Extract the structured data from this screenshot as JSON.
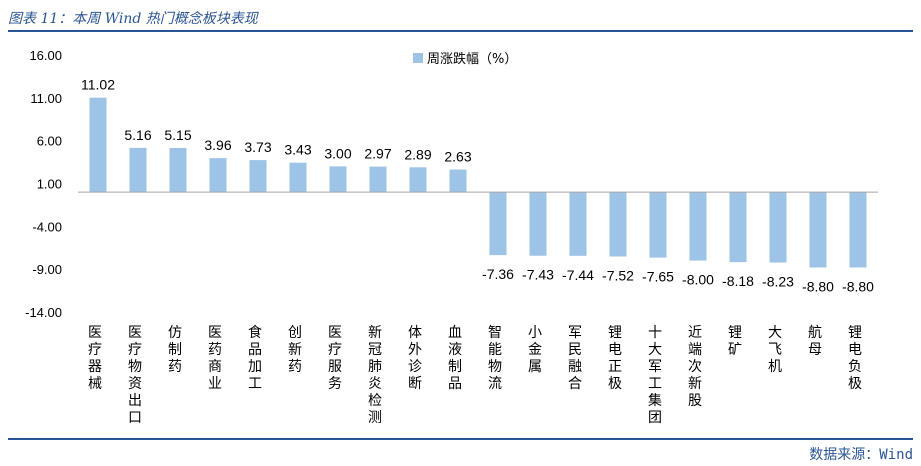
{
  "header": {
    "caption": "图表 11：本周 Wind 热门概念板块表现"
  },
  "footer": {
    "source": "数据来源：Wind"
  },
  "chart_data": {
    "type": "bar",
    "title": "",
    "xlabel": "",
    "ylabel": "",
    "ylim": [
      -14,
      16
    ],
    "yticks": [
      "16.00",
      "11.00",
      "6.00",
      "1.00",
      "-4.00",
      "-9.00",
      "-14.00"
    ],
    "ytick_values": [
      16,
      11,
      6,
      1,
      -4,
      -9,
      -14
    ],
    "legend": "top-center",
    "grid": false,
    "bar_color": "#9dc3e6",
    "categories": [
      "医疗器械",
      "医疗物资出口",
      "仿制药",
      "医药商业",
      "食品加工",
      "创新药",
      "医疗服务",
      "新冠肺炎检测",
      "体外诊断",
      "血液制品",
      "智能物流",
      "小金属",
      "军民融合",
      "锂电正极",
      "十大军工集团",
      "近端次新股",
      "锂矿",
      "大飞机",
      "航母",
      "锂电负极"
    ],
    "series": [
      {
        "name": "周涨跌幅（%）",
        "values": [
          11.02,
          5.16,
          5.15,
          3.96,
          3.73,
          3.43,
          3.0,
          2.97,
          2.89,
          2.63,
          -7.36,
          -7.43,
          -7.44,
          -7.52,
          -7.65,
          -8.0,
          -8.18,
          -8.23,
          -8.8,
          -8.8
        ],
        "labels": [
          "11.02",
          "5.16",
          "5.15",
          "3.96",
          "3.73",
          "3.43",
          "3.00",
          "2.97",
          "2.89",
          "2.63",
          "-7.36",
          "-7.43",
          "-7.44",
          "-7.52",
          "-7.65",
          "-8.00",
          "-8.18",
          "-8.23",
          "-8.80",
          "-8.80"
        ]
      }
    ]
  }
}
